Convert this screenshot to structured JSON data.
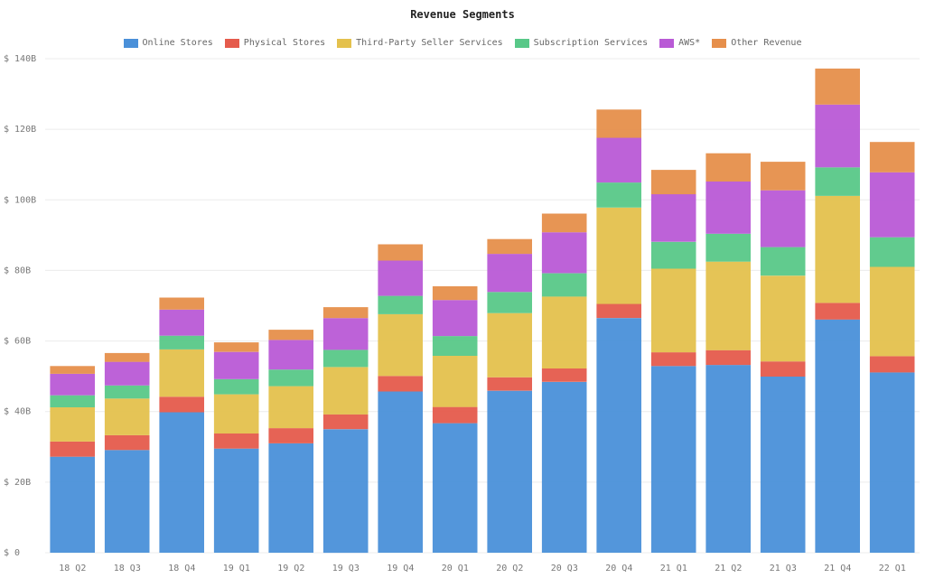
{
  "chart_data": {
    "type": "bar",
    "stacked": true,
    "title": "Revenue Segments",
    "categories": [
      "18 Q2",
      "18 Q3",
      "18 Q4",
      "19 Q1",
      "19 Q2",
      "19 Q3",
      "19 Q4",
      "20 Q1",
      "20 Q2",
      "20 Q3",
      "20 Q4",
      "21 Q1",
      "21 Q2",
      "21 Q3",
      "21 Q4",
      "22 Q1"
    ],
    "series": [
      {
        "name": "Online Stores",
        "color": "#4a90d9",
        "values": [
          27.2,
          29.1,
          39.8,
          29.5,
          31.0,
          35.0,
          45.7,
          36.7,
          45.9,
          48.4,
          66.5,
          52.9,
          53.2,
          49.9,
          66.1,
          51.1
        ]
      },
      {
        "name": "Physical Stores",
        "color": "#e55b4c",
        "values": [
          4.3,
          4.2,
          4.4,
          4.3,
          4.3,
          4.2,
          4.4,
          4.6,
          3.8,
          3.8,
          4.0,
          3.9,
          4.2,
          4.3,
          4.7,
          4.6
        ]
      },
      {
        "name": "Third-Party Seller Services",
        "color": "#e4c14d",
        "values": [
          9.7,
          10.4,
          13.4,
          11.1,
          11.9,
          13.4,
          17.5,
          14.5,
          18.2,
          20.4,
          27.3,
          23.7,
          25.1,
          24.3,
          30.3,
          25.3
        ]
      },
      {
        "name": "Subscription Services",
        "color": "#58c888",
        "values": [
          3.4,
          3.7,
          3.9,
          4.3,
          4.7,
          4.9,
          5.2,
          5.6,
          6.0,
          6.6,
          7.1,
          7.6,
          7.9,
          8.1,
          8.1,
          8.4
        ]
      },
      {
        "name": "AWS*",
        "color": "#b95ad6",
        "values": [
          6.1,
          6.7,
          7.4,
          7.7,
          8.4,
          9.0,
          10.0,
          10.2,
          10.8,
          11.6,
          12.7,
          13.5,
          14.8,
          16.1,
          17.8,
          18.4
        ]
      },
      {
        "name": "Other Revenue",
        "color": "#e68f4b",
        "values": [
          2.2,
          2.5,
          3.4,
          2.7,
          2.9,
          3.1,
          4.6,
          3.9,
          4.2,
          5.3,
          8.0,
          6.9,
          8.0,
          8.1,
          10.2,
          8.6
        ]
      }
    ],
    "y_ticks": [
      "$ 0",
      "$ 20B",
      "$ 40B",
      "$ 60B",
      "$ 80B",
      "$ 100B",
      "$ 120B",
      "$ 140B"
    ],
    "ylim": [
      0,
      140
    ],
    "grid": true,
    "legend_position": "top-center"
  }
}
